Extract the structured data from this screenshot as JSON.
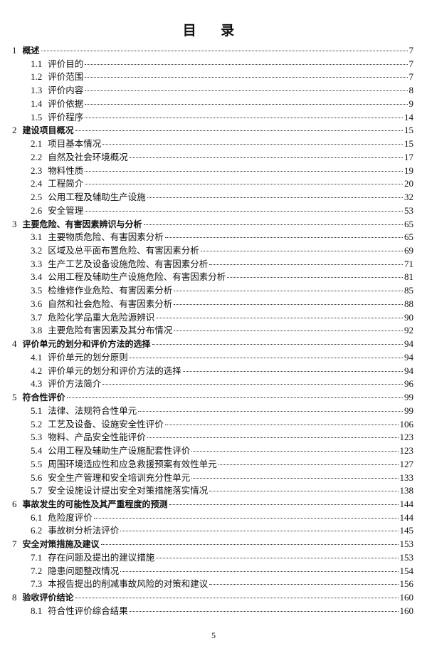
{
  "title": "目  录",
  "page_number": "5",
  "entries": [
    {
      "level": 1,
      "num": "1",
      "text": "概述",
      "page": "7"
    },
    {
      "level": 2,
      "num": "1.1",
      "text": "评价目的",
      "page": "7"
    },
    {
      "level": 2,
      "num": "1.2",
      "text": "评价范围",
      "page": "7"
    },
    {
      "level": 2,
      "num": "1.3",
      "text": "评价内容",
      "page": "8"
    },
    {
      "level": 2,
      "num": "1.4",
      "text": "评价依据",
      "page": "9"
    },
    {
      "level": 2,
      "num": "1.5",
      "text": "评价程序",
      "page": "14"
    },
    {
      "level": 1,
      "num": "2",
      "text": "建设项目概况",
      "page": "15"
    },
    {
      "level": 2,
      "num": "2.1",
      "text": "项目基本情况",
      "page": "15"
    },
    {
      "level": 2,
      "num": "2.2",
      "text": "自然及社会环境概况",
      "page": "17"
    },
    {
      "level": 2,
      "num": "2.3",
      "text": "物料性质",
      "page": "19"
    },
    {
      "level": 2,
      "num": "2.4",
      "text": "工程简介",
      "page": "20"
    },
    {
      "level": 2,
      "num": "2.5",
      "text": "公用工程及辅助生产设施",
      "page": "32"
    },
    {
      "level": 2,
      "num": "2.6",
      "text": "安全管理",
      "page": "53"
    },
    {
      "level": 1,
      "num": "3",
      "text": "主要危险、有害因素辨识与分析",
      "page": "65"
    },
    {
      "level": 2,
      "num": "3.1",
      "text": "主要物质危险、有害因素分析",
      "page": "65"
    },
    {
      "level": 2,
      "num": "3.2",
      "text": "区域及总平面布置危险、有害因素分析",
      "page": "69"
    },
    {
      "level": 2,
      "num": "3.3",
      "text": "生产工艺及设备设施危险、有害因素分析",
      "page": "71"
    },
    {
      "level": 2,
      "num": "3.4",
      "text": "公用工程及辅助生产设施危险、有害因素分析",
      "page": "81"
    },
    {
      "level": 2,
      "num": "3.5",
      "text": "检维修作业危险、有害因素分析",
      "page": "85"
    },
    {
      "level": 2,
      "num": "3.6",
      "text": "自然和社会危险、有害因素分析",
      "page": "88"
    },
    {
      "level": 2,
      "num": "3.7",
      "text": "危险化学品重大危险源辨识",
      "page": "90"
    },
    {
      "level": 2,
      "num": "3.8",
      "text": "主要危险有害因素及其分布情况",
      "page": "92"
    },
    {
      "level": 1,
      "num": "4",
      "text": "评价单元的划分和评价方法的选择",
      "page": "94"
    },
    {
      "level": 2,
      "num": "4.1",
      "text": "评价单元的划分原则",
      "page": "94"
    },
    {
      "level": 2,
      "num": "4.2",
      "text": "评价单元的划分和评价方法的选择",
      "page": "94"
    },
    {
      "level": 2,
      "num": "4.3",
      "text": "评价方法简介",
      "page": "96"
    },
    {
      "level": 1,
      "num": "5",
      "text": "符合性评价",
      "page": "99"
    },
    {
      "level": 2,
      "num": "5.1",
      "text": "法律、法规符合性单元",
      "page": "99"
    },
    {
      "level": 2,
      "num": "5.2",
      "text": "工艺及设备、设施安全性评价",
      "page": "106"
    },
    {
      "level": 2,
      "num": "5.3",
      "text": "物料、产品安全性能评价",
      "page": "123"
    },
    {
      "level": 2,
      "num": "5.4",
      "text": "公用工程及辅助生产设施配套性评价",
      "page": "123"
    },
    {
      "level": 2,
      "num": "5.5",
      "text": "周围环境适应性和应急救援预案有效性单元",
      "page": "127"
    },
    {
      "level": 2,
      "num": "5.6",
      "text": "安全生产管理和安全培训充分性单元",
      "page": "133"
    },
    {
      "level": 2,
      "num": "5.7",
      "text": "安全设施设计提出安全对策措施落实情况",
      "page": "138"
    },
    {
      "level": 1,
      "num": "6",
      "text": "事故发生的可能性及其严重程度的预测",
      "page": "144"
    },
    {
      "level": 2,
      "num": "6.1",
      "text": "危险度评价",
      "page": "144"
    },
    {
      "level": 2,
      "num": "6.2",
      "text": "事故树分析法评价",
      "page": "145"
    },
    {
      "level": 1,
      "num": "7",
      "text": "安全对策措施及建议",
      "page": "153"
    },
    {
      "level": 2,
      "num": "7.1",
      "text": "存在问题及提出的建议措施",
      "page": "153"
    },
    {
      "level": 2,
      "num": "7.2",
      "text": "隐患问题整改情况",
      "page": "154"
    },
    {
      "level": 2,
      "num": "7.3",
      "text": "本报告提出的削减事故风险的对策和建议",
      "page": "156"
    },
    {
      "level": 1,
      "num": "8",
      "text": "验收评价结论",
      "page": "160"
    },
    {
      "level": 2,
      "num": "8.1",
      "text": "符合性评价综合结果",
      "page": "160"
    }
  ]
}
